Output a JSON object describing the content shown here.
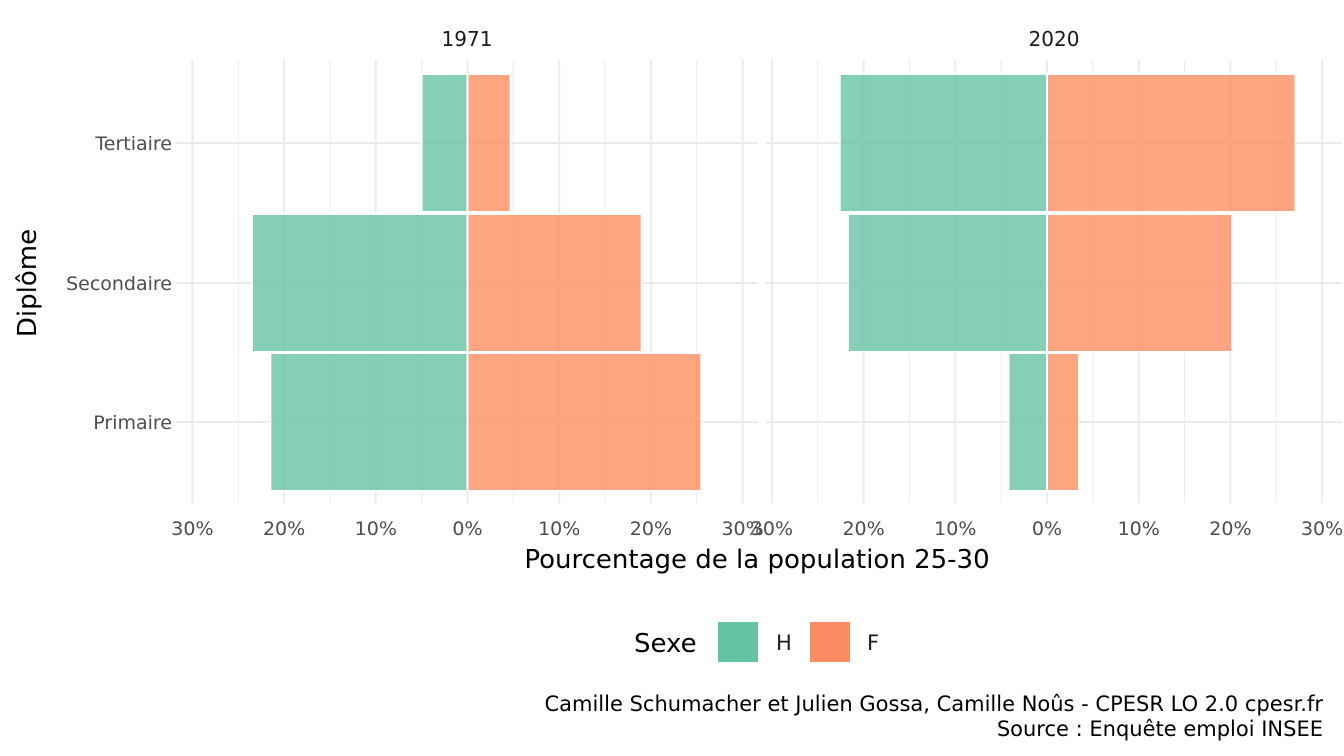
{
  "chart_data": {
    "type": "bar",
    "orientation": "horizontal",
    "layout": "population-pyramid",
    "xlabel": "Pourcentage de la population 25-30",
    "ylabel": "Diplôme",
    "categories": [
      "Primaire",
      "Secondaire",
      "Tertiaire"
    ],
    "x_ticks": [
      "30%",
      "20%",
      "10%",
      "0%",
      "10%",
      "20%",
      "30%"
    ],
    "xlim": [
      -30,
      30
    ],
    "grid": true,
    "legend": {
      "title": "Sexe",
      "position": "bottom",
      "entries": [
        {
          "label": "H",
          "color": "#66c2a5"
        },
        {
          "label": "F",
          "color": "#fc8d62"
        }
      ]
    },
    "facets": [
      {
        "title": "1971",
        "series": [
          {
            "name": "H",
            "color": "#66c2a5",
            "values": [
              21.5,
              23.5,
              5.0
            ]
          },
          {
            "name": "F",
            "color": "#fc8d62",
            "values": [
              25.5,
              19.0,
              4.7
            ]
          }
        ]
      },
      {
        "title": "2020",
        "series": [
          {
            "name": "H",
            "color": "#66c2a5",
            "values": [
              4.2,
              21.7,
              22.6
            ]
          },
          {
            "name": "F",
            "color": "#fc8d62",
            "values": [
              3.5,
              20.2,
              27.1
            ]
          }
        ]
      }
    ],
    "caption": [
      "Camille Schumacher et Julien Gossa, Camille Noûs - CPESR LO 2.0 cpesr.fr",
      "Source : Enquête emploi INSEE"
    ]
  }
}
